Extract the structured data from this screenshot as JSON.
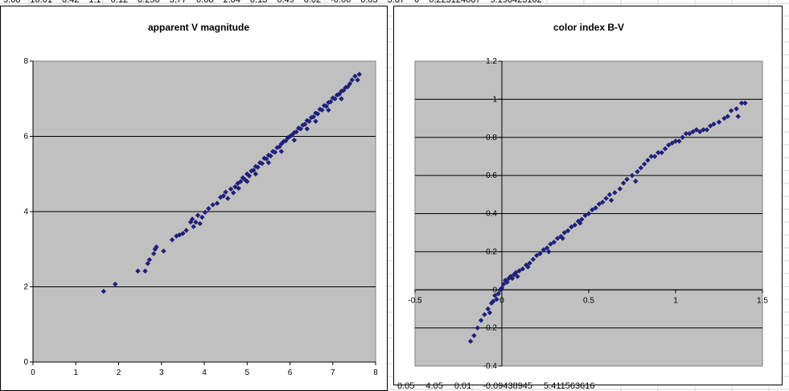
{
  "sheet": {
    "top_row_cells": [
      "5.08",
      "16.01",
      "0.42",
      "1.1",
      "0.12",
      "0.256",
      "3.77",
      "0.08",
      "2.04",
      "0.13",
      "0.49",
      "0.02",
      "-0.06",
      "0.03",
      "3.87",
      "0",
      "0.223124087",
      "5.198423162"
    ],
    "bottom_row_cells": [
      "0.05",
      "4.05",
      "0.01",
      "-0.09438945",
      "5.411563616"
    ]
  },
  "colors": {
    "plot_area": "#c0c0c0",
    "marker": "#1f1f7a",
    "gridline": "#000000",
    "sheet_grid": "#d4d4d4"
  },
  "chart_data": [
    {
      "type": "scatter",
      "title": "apparent V magnitude",
      "xlabel": "",
      "ylabel": "",
      "xlim": [
        0,
        8
      ],
      "ylim": [
        0,
        8
      ],
      "x_ticks": [
        "0",
        "1",
        "2",
        "3",
        "4",
        "5",
        "6",
        "7",
        "8"
      ],
      "y_ticks": [
        "0",
        "2",
        "4",
        "6",
        "8"
      ],
      "grid": "horizontal",
      "legend": "none",
      "marker": "diamond",
      "points": [
        [
          1.65,
          1.88
        ],
        [
          1.92,
          2.07
        ],
        [
          2.45,
          2.42
        ],
        [
          2.62,
          2.42
        ],
        [
          2.68,
          2.62
        ],
        [
          2.72,
          2.72
        ],
        [
          2.82,
          2.88
        ],
        [
          2.85,
          3.0
        ],
        [
          2.88,
          3.06
        ],
        [
          3.05,
          2.95
        ],
        [
          3.25,
          3.25
        ],
        [
          3.35,
          3.35
        ],
        [
          3.42,
          3.38
        ],
        [
          3.5,
          3.42
        ],
        [
          3.58,
          3.5
        ],
        [
          3.68,
          3.72
        ],
        [
          3.72,
          3.8
        ],
        [
          3.75,
          3.6
        ],
        [
          3.8,
          3.72
        ],
        [
          3.85,
          3.9
        ],
        [
          3.9,
          3.68
        ],
        [
          3.95,
          3.85
        ],
        [
          4.02,
          3.98
        ],
        [
          4.1,
          4.08
        ],
        [
          4.2,
          4.18
        ],
        [
          4.3,
          4.22
        ],
        [
          4.38,
          4.38
        ],
        [
          4.45,
          4.42
        ],
        [
          4.5,
          4.52
        ],
        [
          4.55,
          4.35
        ],
        [
          4.62,
          4.6
        ],
        [
          4.68,
          4.5
        ],
        [
          4.72,
          4.66
        ],
        [
          4.78,
          4.75
        ],
        [
          4.85,
          4.8
        ],
        [
          4.9,
          4.9
        ],
        [
          4.95,
          4.85
        ],
        [
          5.0,
          5.0
        ],
        [
          5.05,
          4.95
        ],
        [
          5.1,
          5.08
        ],
        [
          5.15,
          5.1
        ],
        [
          5.2,
          5.2
        ],
        [
          5.25,
          5.18
        ],
        [
          5.3,
          5.3
        ],
        [
          5.35,
          5.28
        ],
        [
          5.4,
          5.42
        ],
        [
          5.45,
          5.4
        ],
        [
          5.5,
          5.5
        ],
        [
          5.55,
          5.48
        ],
        [
          5.6,
          5.6
        ],
        [
          5.65,
          5.58
        ],
        [
          5.7,
          5.7
        ],
        [
          5.75,
          5.72
        ],
        [
          5.8,
          5.8
        ],
        [
          5.85,
          5.86
        ],
        [
          5.9,
          5.88
        ],
        [
          5.95,
          5.96
        ],
        [
          6.0,
          6.0
        ],
        [
          6.05,
          6.04
        ],
        [
          6.1,
          6.1
        ],
        [
          6.15,
          6.12
        ],
        [
          6.2,
          6.22
        ],
        [
          6.25,
          6.2
        ],
        [
          6.3,
          6.3
        ],
        [
          6.35,
          6.32
        ],
        [
          6.4,
          6.42
        ],
        [
          6.45,
          6.4
        ],
        [
          6.5,
          6.5
        ],
        [
          6.55,
          6.52
        ],
        [
          6.6,
          6.62
        ],
        [
          6.65,
          6.6
        ],
        [
          6.7,
          6.72
        ],
        [
          6.75,
          6.7
        ],
        [
          6.8,
          6.82
        ],
        [
          6.85,
          6.8
        ],
        [
          6.9,
          6.9
        ],
        [
          6.95,
          6.92
        ],
        [
          7.0,
          7.02
        ],
        [
          7.05,
          7.0
        ],
        [
          7.1,
          7.1
        ],
        [
          7.15,
          7.12
        ],
        [
          7.2,
          7.2
        ],
        [
          7.25,
          7.22
        ],
        [
          7.3,
          7.3
        ],
        [
          7.35,
          7.32
        ],
        [
          7.4,
          7.4
        ],
        [
          7.45,
          7.5
        ],
        [
          7.52,
          7.6
        ],
        [
          7.58,
          7.5
        ],
        [
          7.62,
          7.65
        ],
        [
          5.2,
          5.0
        ],
        [
          5.5,
          5.3
        ],
        [
          5.8,
          5.6
        ],
        [
          6.1,
          5.9
        ],
        [
          6.4,
          6.2
        ],
        [
          5.0,
          4.8
        ],
        [
          4.8,
          4.62
        ],
        [
          6.6,
          6.4
        ],
        [
          6.9,
          6.7
        ],
        [
          7.2,
          7.0
        ]
      ]
    },
    {
      "type": "scatter",
      "title": "color index B-V",
      "xlabel": "",
      "ylabel": "",
      "xlim": [
        -0.5,
        1.5
      ],
      "ylim": [
        -0.4,
        1.2
      ],
      "x_ticks": [
        "-0.5",
        "0",
        "0.5",
        "1",
        "1.5"
      ],
      "y_ticks": [
        "-0.4",
        "-0.2",
        "0",
        "0.2",
        "0.4",
        "0.6",
        "0.8",
        "1",
        "1.2"
      ],
      "grid": "horizontal",
      "legend": "none",
      "marker": "diamond",
      "points": [
        [
          -0.18,
          -0.27
        ],
        [
          -0.16,
          -0.24
        ],
        [
          -0.14,
          -0.2
        ],
        [
          -0.12,
          -0.16
        ],
        [
          -0.1,
          -0.13
        ],
        [
          -0.08,
          -0.1
        ],
        [
          -0.06,
          -0.07
        ],
        [
          -0.05,
          -0.06
        ],
        [
          -0.04,
          -0.03
        ],
        [
          -0.02,
          -0.02
        ],
        [
          -0.01,
          0.0
        ],
        [
          0.0,
          0.01
        ],
        [
          0.01,
          0.03
        ],
        [
          0.02,
          0.05
        ],
        [
          0.03,
          0.04
        ],
        [
          0.04,
          0.06
        ],
        [
          0.05,
          0.07
        ],
        [
          0.06,
          0.06
        ],
        [
          0.07,
          0.08
        ],
        [
          0.08,
          0.09
        ],
        [
          0.1,
          0.1
        ],
        [
          0.12,
          0.11
        ],
        [
          0.14,
          0.13
        ],
        [
          0.16,
          0.14
        ],
        [
          0.18,
          0.16
        ],
        [
          0.2,
          0.18
        ],
        [
          0.22,
          0.19
        ],
        [
          0.24,
          0.21
        ],
        [
          0.26,
          0.22
        ],
        [
          0.28,
          0.24
        ],
        [
          0.3,
          0.25
        ],
        [
          0.32,
          0.27
        ],
        [
          0.34,
          0.28
        ],
        [
          0.36,
          0.3
        ],
        [
          0.38,
          0.31
        ],
        [
          0.4,
          0.33
        ],
        [
          0.42,
          0.34
        ],
        [
          0.44,
          0.36
        ],
        [
          0.46,
          0.37
        ],
        [
          0.48,
          0.39
        ],
        [
          0.5,
          0.4
        ],
        [
          0.52,
          0.42
        ],
        [
          0.54,
          0.43
        ],
        [
          0.56,
          0.45
        ],
        [
          0.58,
          0.46
        ],
        [
          0.6,
          0.48
        ],
        [
          0.62,
          0.5
        ],
        [
          0.65,
          0.51
        ],
        [
          0.68,
          0.53
        ],
        [
          0.7,
          0.56
        ],
        [
          0.72,
          0.58
        ],
        [
          0.75,
          0.6
        ],
        [
          0.78,
          0.62
        ],
        [
          0.8,
          0.64
        ],
        [
          0.82,
          0.66
        ],
        [
          0.84,
          0.68
        ],
        [
          0.86,
          0.7
        ],
        [
          0.88,
          0.7
        ],
        [
          0.9,
          0.72
        ],
        [
          0.92,
          0.72
        ],
        [
          0.94,
          0.74
        ],
        [
          0.96,
          0.76
        ],
        [
          0.98,
          0.77
        ],
        [
          1.0,
          0.78
        ],
        [
          1.02,
          0.78
        ],
        [
          1.04,
          0.8
        ],
        [
          1.06,
          0.82
        ],
        [
          1.08,
          0.82
        ],
        [
          1.1,
          0.83
        ],
        [
          1.12,
          0.84
        ],
        [
          1.14,
          0.83
        ],
        [
          1.16,
          0.84
        ],
        [
          1.18,
          0.84
        ],
        [
          1.2,
          0.86
        ],
        [
          1.22,
          0.87
        ],
        [
          1.25,
          0.88
        ],
        [
          1.28,
          0.9
        ],
        [
          1.3,
          0.91
        ],
        [
          1.32,
          0.94
        ],
        [
          1.35,
          0.95
        ],
        [
          1.38,
          0.98
        ],
        [
          1.4,
          0.98
        ],
        [
          1.36,
          0.91
        ],
        [
          -0.07,
          -0.12
        ],
        [
          -0.03,
          -0.05
        ],
        [
          0.09,
          0.07
        ],
        [
          0.27,
          0.2
        ],
        [
          0.45,
          0.35
        ],
        [
          0.63,
          0.47
        ],
        [
          0.77,
          0.57
        ],
        [
          0.15,
          0.12
        ],
        [
          0.35,
          0.27
        ]
      ]
    }
  ]
}
